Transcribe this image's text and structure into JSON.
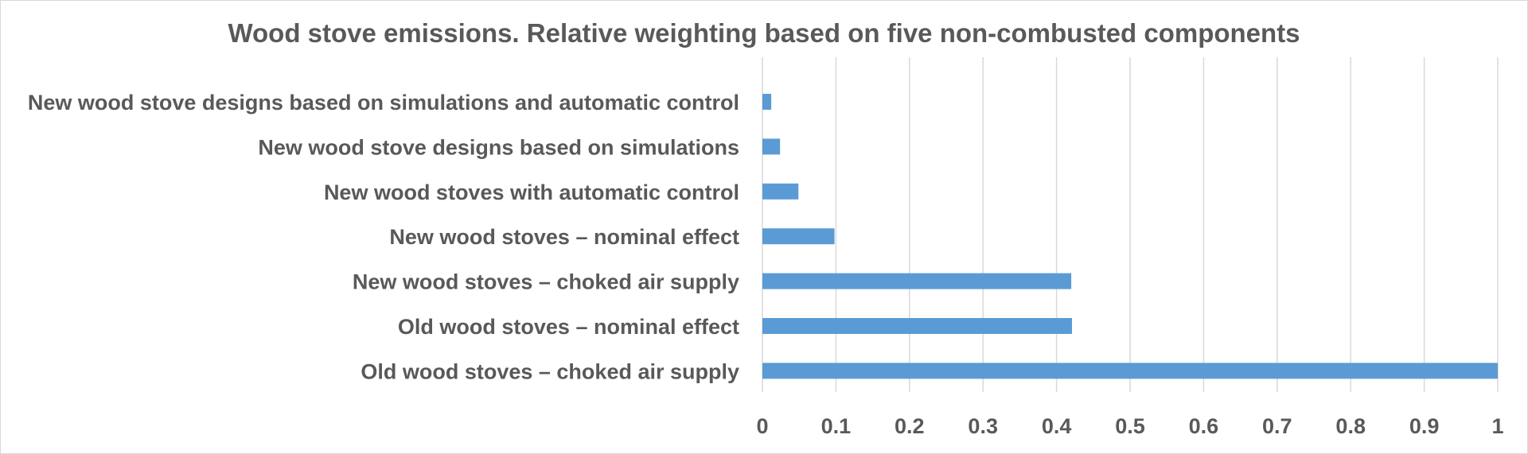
{
  "chart_data": {
    "type": "bar",
    "orientation": "horizontal",
    "title": "Wood stove emissions. Relative weighting based on five non-combusted components",
    "xlabel": "",
    "ylabel": "",
    "categories": [
      "New wood stove designs based on simulations and automatic control",
      "New wood stove designs based on simulations",
      "New wood stoves with automatic control",
      "New wood stoves – nominal effect",
      "New wood stoves – choked air supply",
      "Old wood stoves – nominal effect",
      "Old wood stoves – choked air supply"
    ],
    "values": [
      0.012,
      0.024,
      0.049,
      0.098,
      0.42,
      0.421,
      1.0
    ],
    "xlim": [
      0,
      1
    ],
    "xticks": [
      "0",
      "0.1",
      "0.2",
      "0.3",
      "0.4",
      "0.5",
      "0.6",
      "0.7",
      "0.8",
      "0.9",
      "1"
    ],
    "grid": "vertical",
    "legend": "none",
    "bar_color": "#5b9bd5",
    "grid_color": "#d9d9d9",
    "text_color": "#595959"
  }
}
